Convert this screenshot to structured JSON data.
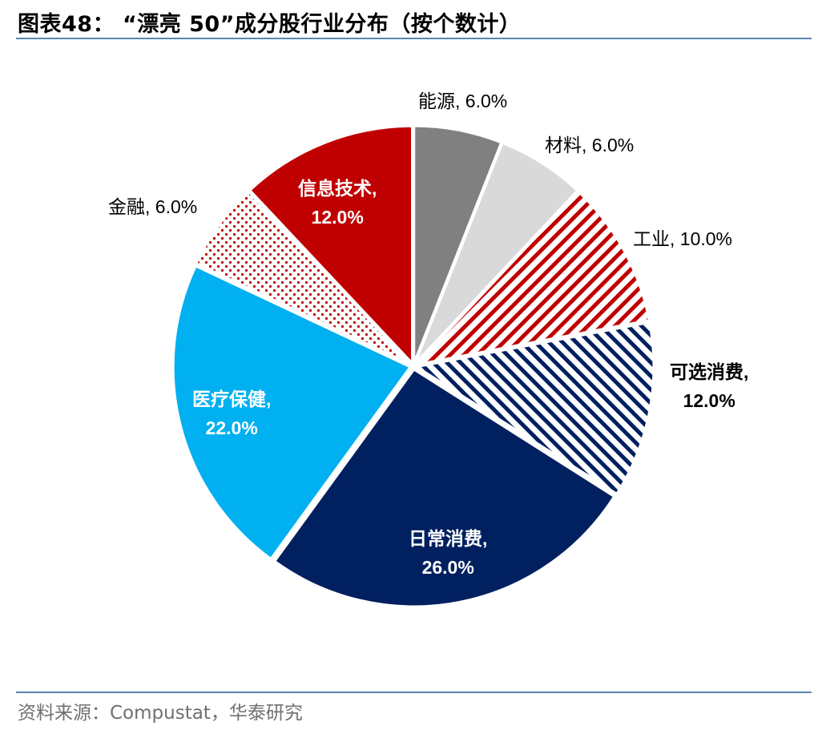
{
  "header": {
    "title": "图表48： “漂亮 50”成分股行业分布（按个数计）"
  },
  "footer": {
    "source": "资料来源：Compustat，华泰研究"
  },
  "colors": {
    "rule": "#5b85b5",
    "energy": "#808080",
    "materials": "#d9d9d9",
    "industrials_stripe": "#c00000",
    "discretionary_stripe": "#002060",
    "staples": "#002060",
    "healthcare": "#00b0f0",
    "financials_dot": "#c00000",
    "it": "#c00000"
  },
  "chart_data": {
    "type": "pie",
    "title": "“漂亮 50”成分股行业分布（按个数计）",
    "start_angle_deg": 0,
    "direction": "clockwise",
    "categories": [
      "能源",
      "材料",
      "工业",
      "可选消费",
      "日常消费",
      "医疗保健",
      "金融",
      "信息技术"
    ],
    "values": [
      6.0,
      6.0,
      10.0,
      12.0,
      26.0,
      22.0,
      6.0,
      12.0
    ],
    "unit": "%",
    "labels": [
      {
        "name": "能源",
        "value": "6.0%",
        "text": "能源, 6.0%"
      },
      {
        "name": "材料",
        "value": "6.0%",
        "text": "材料, 6.0%"
      },
      {
        "name": "工业",
        "value": "10.0%",
        "text": "工业, 10.0%"
      },
      {
        "name": "可选消费",
        "value": "12.0%",
        "line1": "可选消费,",
        "line2": "12.0%"
      },
      {
        "name": "日常消费",
        "value": "26.0%",
        "line1": "日常消费,",
        "line2": "26.0%"
      },
      {
        "name": "医疗保健",
        "value": "22.0%",
        "line1": "医疗保健,",
        "line2": "22.0%"
      },
      {
        "name": "金融",
        "value": "6.0%",
        "text": "金融, 6.0%"
      },
      {
        "name": "信息技术",
        "value": "12.0%",
        "line1": "信息技术,",
        "line2": "12.0%"
      }
    ],
    "fills": [
      "solid-gray",
      "solid-lightgray",
      "stripe-red",
      "stripe-navy",
      "solid-navy",
      "solid-skyblue",
      "dots-red",
      "solid-red"
    ],
    "legend": "none (data labels)"
  }
}
